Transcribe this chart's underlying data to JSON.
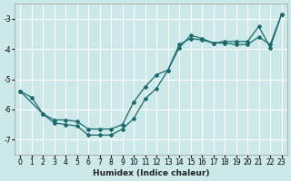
{
  "xlabel": "Humidex (Indice chaleur)",
  "bg_color": "#cce8e8",
  "grid_color": "#ffffff",
  "line_color": "#1a6b6b",
  "xlim": [
    -0.5,
    23.5
  ],
  "ylim": [
    -7.5,
    -2.5
  ],
  "xticks": [
    0,
    1,
    2,
    3,
    4,
    5,
    6,
    7,
    8,
    9,
    10,
    11,
    12,
    13,
    14,
    15,
    16,
    17,
    18,
    19,
    20,
    21,
    22,
    23
  ],
  "yticks": [
    -7,
    -6,
    -5,
    -4,
    -3
  ],
  "line1_x": [
    0,
    1,
    2,
    3,
    4,
    5,
    6,
    7,
    8,
    9,
    10,
    11,
    12,
    13,
    14,
    15,
    16,
    17,
    18,
    19,
    20,
    21,
    22,
    23
  ],
  "line1_y": [
    -5.4,
    -5.6,
    -6.15,
    -6.35,
    -6.35,
    -6.4,
    -6.65,
    -6.65,
    -6.65,
    -6.5,
    -5.75,
    -5.25,
    -4.85,
    -4.7,
    -3.85,
    -3.65,
    -3.7,
    -3.8,
    -3.75,
    -3.75,
    -3.75,
    -3.25,
    -3.95,
    -2.85
  ],
  "line2_x": [
    0,
    2,
    3,
    4,
    5,
    6,
    7,
    8,
    9,
    10,
    11,
    12,
    13,
    14,
    15,
    16,
    17,
    18,
    19,
    20,
    21,
    22,
    23
  ],
  "line2_y": [
    -5.4,
    -6.15,
    -6.45,
    -6.5,
    -6.55,
    -6.85,
    -6.85,
    -6.85,
    -6.65,
    -6.3,
    -5.65,
    -5.3,
    -4.7,
    -3.95,
    -3.55,
    -3.65,
    -3.8,
    -3.8,
    -3.85,
    -3.85,
    -3.6,
    -3.85,
    -2.85
  ]
}
